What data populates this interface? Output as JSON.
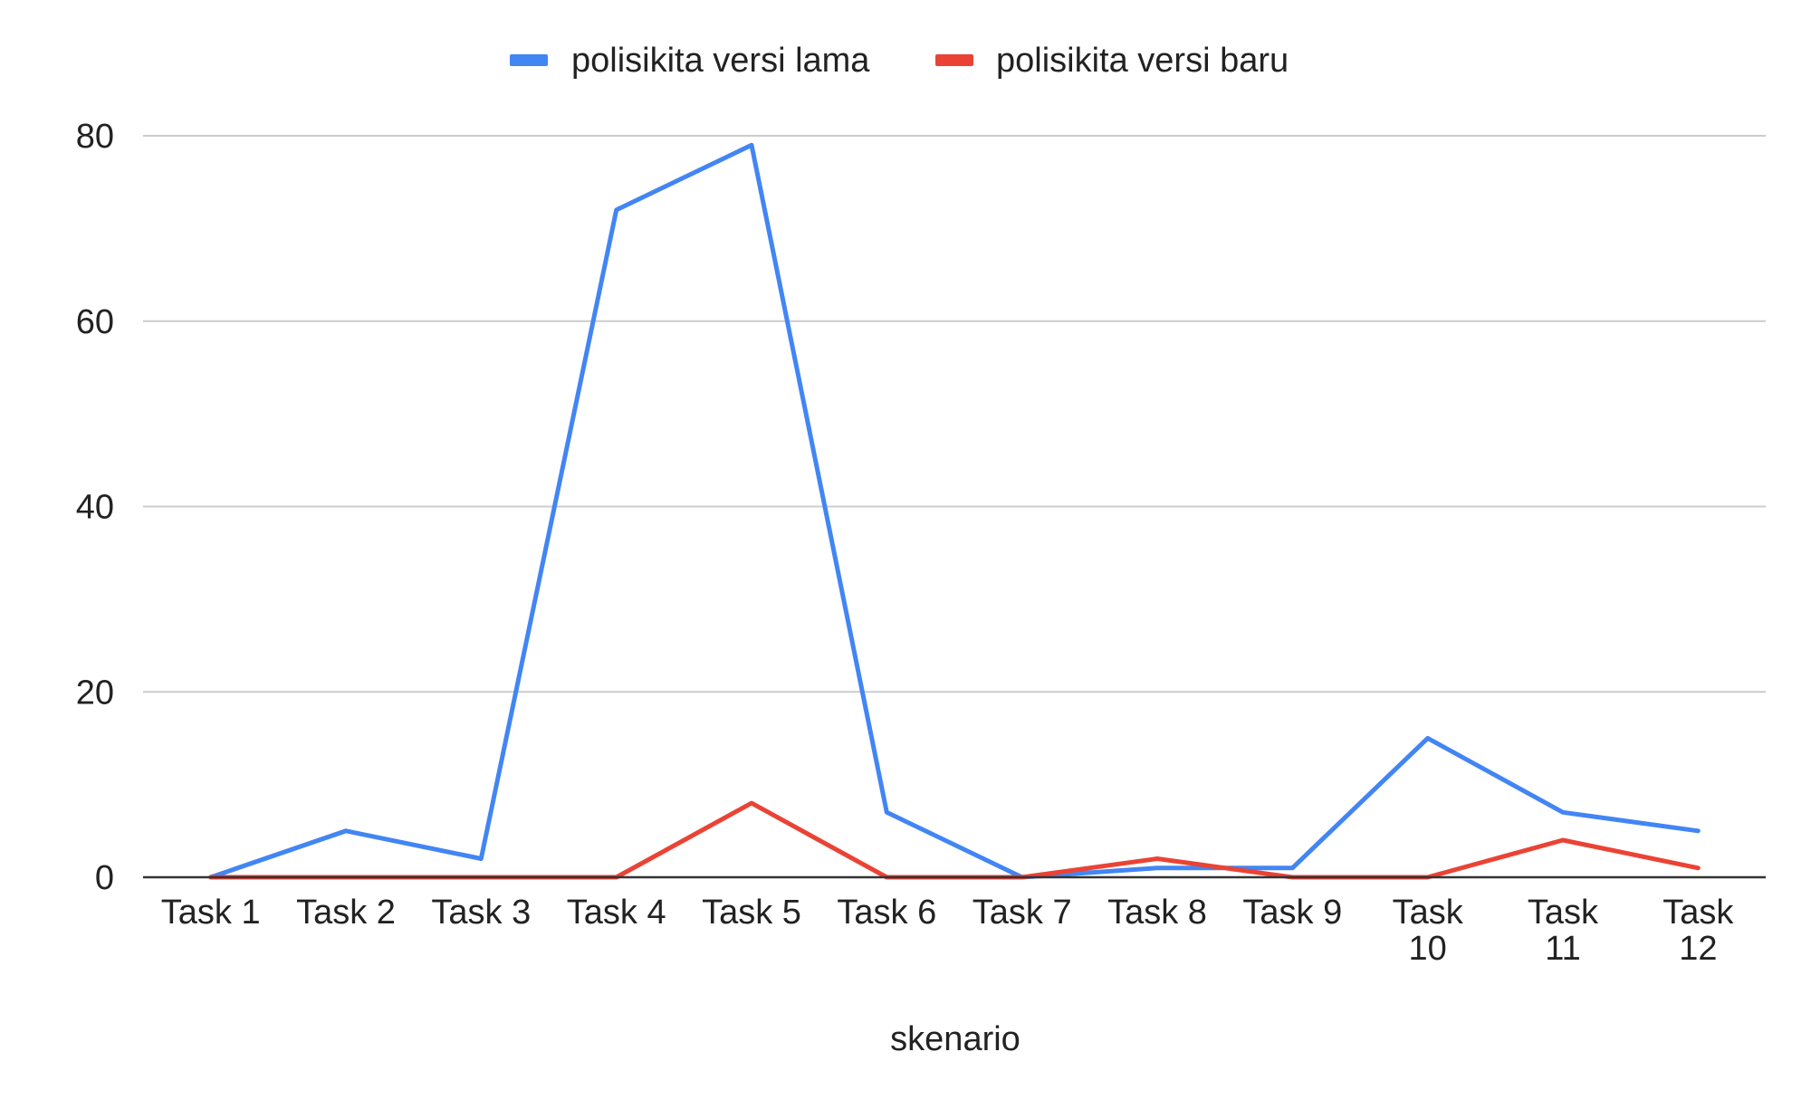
{
  "chart_data": {
    "type": "line",
    "title": "",
    "xlabel": "skenario",
    "ylabel": "",
    "categories": [
      "Task 1",
      "Task 2",
      "Task 3",
      "Task 4",
      "Task 5",
      "Task 6",
      "Task 7",
      "Task 8",
      "Task 9",
      "Task 10",
      "Task 11",
      "Task 12"
    ],
    "ylim": [
      0,
      80
    ],
    "yticks": [
      0,
      20,
      40,
      60,
      80
    ],
    "grid": true,
    "legend_position": "top",
    "series": [
      {
        "name": "polisikita versi lama",
        "color": "#4285f4",
        "values": [
          0,
          5,
          2,
          72,
          79,
          7,
          0,
          1,
          1,
          15,
          7,
          5
        ]
      },
      {
        "name": "polisikita versi baru",
        "color": "#ea4335",
        "values": [
          0,
          0,
          0,
          0,
          8,
          0,
          0,
          2,
          0,
          0,
          4,
          1
        ]
      }
    ]
  }
}
